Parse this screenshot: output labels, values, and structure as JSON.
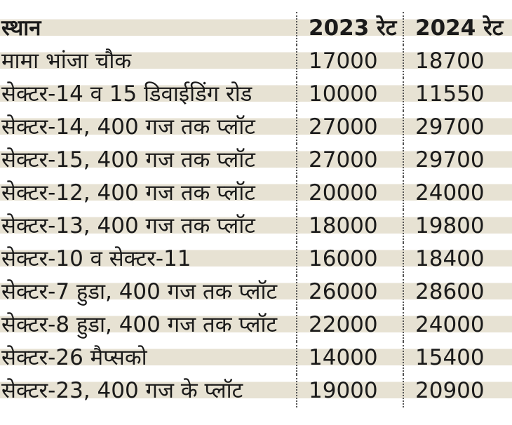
{
  "table": {
    "header": [
      "स्थान",
      "2023 रेट",
      "2024 रेट"
    ],
    "rows": [
      [
        "मामा भांजा चौक",
        17000,
        18700
      ],
      [
        "सेक्टर-14 व 15 डिवाईडिंग रोड",
        10000,
        11550
      ],
      [
        "सेक्टर-14, 400 गज तक प्लॉट",
        27000,
        29700
      ],
      [
        "सेक्टर-15, 400 गज तक प्लॉट",
        27000,
        29700
      ],
      [
        "सेक्टर-12, 400 गज तक प्लॉट",
        20000,
        24000
      ],
      [
        "सेक्टर-13, 400 गज तक प्लॉट",
        18000,
        19800
      ],
      [
        "सेक्टर-10 व सेक्टर-11",
        16000,
        18400
      ],
      [
        "सेक्टर-7 हुडा, 400 गज तक प्लॉट",
        26000,
        28600
      ],
      [
        "सेक्टर-8 हुडा, 400 गज तक प्लॉट",
        22000,
        24000
      ],
      [
        "सेक्टर-26 मैप्सको",
        14000,
        15400
      ],
      [
        "सेक्टर-23, 400 गज के प्लॉट",
        19000,
        20900
      ]
    ]
  }
}
